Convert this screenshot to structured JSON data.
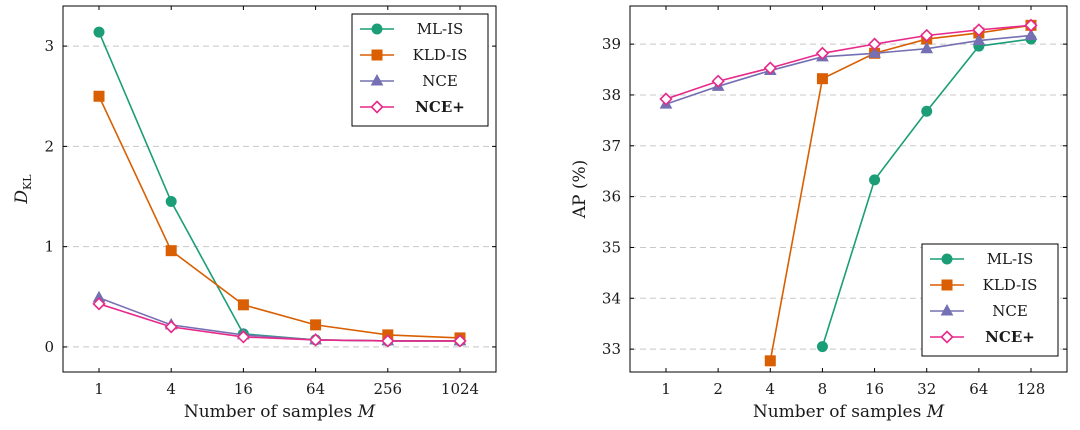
{
  "colors": {
    "ML-IS": "#1b9e77",
    "KLD-IS": "#d95f02",
    "NCE": "#7570b3",
    "NCE+": "#e7298a"
  },
  "chart_data": [
    {
      "type": "line",
      "xscale": "categorical",
      "categories": [
        "1",
        "4",
        "16",
        "64",
        "256",
        "1024"
      ],
      "xlabel": "Number of samples M",
      "ylabel": "D_KL",
      "ylim": [
        -0.25,
        3.4
      ],
      "yticks": [
        "0",
        "1",
        "2",
        "3"
      ],
      "grid": "horizontal dashed",
      "legend_position": "top-right",
      "series": [
        {
          "name": "ML-IS",
          "marker": "circle",
          "values": [
            3.14,
            1.45,
            0.13,
            0.07,
            0.06,
            0.06
          ]
        },
        {
          "name": "KLD-IS",
          "marker": "square",
          "values": [
            2.5,
            0.96,
            0.42,
            0.22,
            0.12,
            0.09
          ]
        },
        {
          "name": "NCE",
          "marker": "triangle",
          "values": [
            0.49,
            0.22,
            0.12,
            0.07,
            0.06,
            0.06
          ]
        },
        {
          "name": "NCE+",
          "marker": "diamond",
          "bold": true,
          "values": [
            0.43,
            0.2,
            0.1,
            0.07,
            0.06,
            0.06
          ]
        }
      ]
    },
    {
      "type": "line",
      "xscale": "categorical",
      "categories": [
        "1",
        "2",
        "4",
        "8",
        "16",
        "32",
        "64",
        "128"
      ],
      "xlabel": "Number of samples M",
      "ylabel": "AP (%)",
      "ylim": [
        32.55,
        39.75
      ],
      "yticks": [
        "33",
        "34",
        "35",
        "36",
        "37",
        "38",
        "39"
      ],
      "grid": "horizontal dashed",
      "legend_position": "bottom-right",
      "series": [
        {
          "name": "ML-IS",
          "marker": "circle",
          "values": [
            null,
            null,
            null,
            33.05,
            36.33,
            37.68,
            38.96,
            39.1
          ]
        },
        {
          "name": "KLD-IS",
          "marker": "square",
          "values": [
            null,
            null,
            32.77,
            38.32,
            38.82,
            39.1,
            39.22,
            39.37
          ]
        },
        {
          "name": "NCE",
          "marker": "triangle",
          "values": [
            37.82,
            38.17,
            38.48,
            38.75,
            38.82,
            38.91,
            39.07,
            39.17
          ]
        },
        {
          "name": "NCE+",
          "marker": "diamond",
          "bold": true,
          "values": [
            37.92,
            38.27,
            38.53,
            38.82,
            39.0,
            39.17,
            39.28,
            39.37
          ]
        }
      ]
    }
  ]
}
